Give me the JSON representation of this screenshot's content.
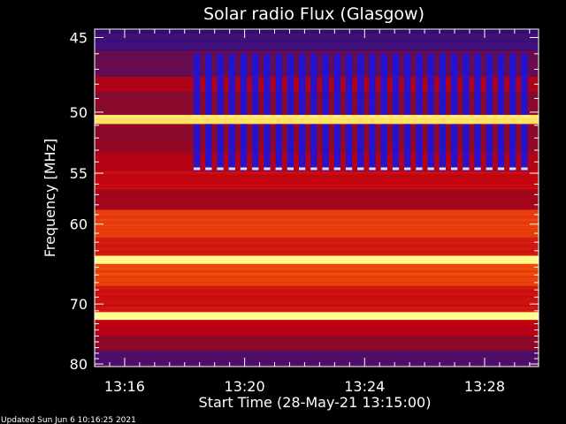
{
  "footer": {
    "updated": "Updated Sun Jun  6 10:16:25 2021"
  },
  "chart_data": {
    "type": "heatmap",
    "title": "Solar radio Flux (Glasgow)",
    "xlabel": "Start Time (28-May-21 13:15:00)",
    "ylabel": "Frequency [MHz]",
    "x_ticks": [
      "13:16",
      "13:20",
      "13:24",
      "13:28"
    ],
    "x_tick_minutes": [
      1,
      5,
      9,
      13
    ],
    "xlim_minutes": [
      0,
      14.8
    ],
    "y_ticks": [
      45,
      50,
      55,
      60,
      70,
      80
    ],
    "ylim": [
      44.5,
      80.5
    ],
    "y_scale": "reciprocal",
    "grid": false,
    "colormap": [
      "#1a0050",
      "#3a1080",
      "#8a0a2a",
      "#c00010",
      "#e03010",
      "#ff6a00",
      "#ffb020",
      "#ffff90"
    ],
    "colors": {
      "background": "#000000",
      "axes": "#ffffff"
    },
    "bands": [
      {
        "freq_from": 44.6,
        "freq_to": 45.8,
        "intensity": 0.15
      },
      {
        "freq_from": 45.8,
        "freq_to": 47.5,
        "intensity": 0.22
      },
      {
        "freq_from": 47.5,
        "freq_to": 48.5,
        "intensity": 0.38
      },
      {
        "freq_from": 48.5,
        "freq_to": 50.2,
        "intensity": 0.28
      },
      {
        "freq_from": 50.2,
        "freq_to": 50.9,
        "intensity": 0.95
      },
      {
        "freq_from": 50.9,
        "freq_to": 53.2,
        "intensity": 0.3
      },
      {
        "freq_from": 53.2,
        "freq_to": 54.8,
        "intensity": 0.4
      },
      {
        "freq_from": 54.8,
        "freq_to": 56.5,
        "intensity": 0.45
      },
      {
        "freq_from": 56.5,
        "freq_to": 58.5,
        "intensity": 0.36
      },
      {
        "freq_from": 58.5,
        "freq_to": 61.5,
        "intensity": 0.6
      },
      {
        "freq_from": 61.5,
        "freq_to": 63.6,
        "intensity": 0.5
      },
      {
        "freq_from": 63.6,
        "freq_to": 64.6,
        "intensity": 1.0
      },
      {
        "freq_from": 64.6,
        "freq_to": 67.5,
        "intensity": 0.62
      },
      {
        "freq_from": 67.5,
        "freq_to": 71.2,
        "intensity": 0.48
      },
      {
        "freq_from": 71.2,
        "freq_to": 72.4,
        "intensity": 1.0
      },
      {
        "freq_from": 72.4,
        "freq_to": 75.0,
        "intensity": 0.42
      },
      {
        "freq_from": 75.0,
        "freq_to": 77.5,
        "intensity": 0.3
      },
      {
        "freq_from": 77.5,
        "freq_to": 80.5,
        "intensity": 0.18
      }
    ],
    "interference": {
      "freq_from": 46.0,
      "freq_to": 54.8,
      "minute_from": 3.3,
      "minute_to": 14.6,
      "stripe_period_minutes": 0.39,
      "color": "#1a14e0"
    }
  }
}
